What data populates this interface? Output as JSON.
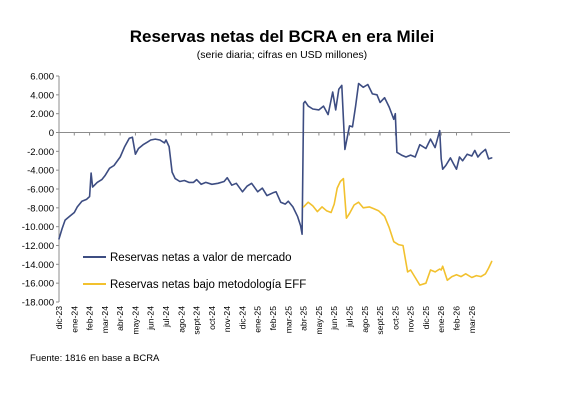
{
  "colors": {
    "market": "#3d4d82",
    "eff": "#f2c12e",
    "axis": "#8c8c8c"
  },
  "chart_data": {
    "type": "line",
    "title": "Reservas netas del BCRA en era Milei",
    "subtitle": "(serie diaria; cifras en USD millones)",
    "source": "Fuente: 1816 en base a BCRA",
    "ylim": [
      -18000,
      6000
    ],
    "yticks": [
      6000,
      4000,
      2000,
      0,
      -2000,
      -4000,
      -6000,
      -8000,
      -10000,
      -12000,
      -14000,
      -16000,
      -18000
    ],
    "ytick_labels": [
      "6.000",
      "4.000",
      "2.000",
      "0",
      "-2.000",
      "-4.000",
      "-6.000",
      "-8.000",
      "-10.000",
      "-12.000",
      "-14.000",
      "-16.000",
      "-18.000"
    ],
    "xlim": [
      0,
      29.5
    ],
    "xticks": [
      "dic-23",
      "ene-24",
      "feb-24",
      "mar-24",
      "abr-24",
      "may-24",
      "jun-24",
      "jul-24",
      "ago-24",
      "sept-24",
      "oct-24",
      "nov-24",
      "dic-24",
      "ene-25",
      "feb-25",
      "mar-25",
      "abr-25",
      "may-25",
      "jun-25",
      "jul-25",
      "ago-25",
      "sept-25",
      "oct-25",
      "nov-25",
      "dic-25",
      "ene-26",
      "feb-26",
      "mar-26"
    ],
    "grid": false,
    "legend_position": "lower-left",
    "series": [
      {
        "name": "Reservas netas a valor de mercado",
        "color_key": "market",
        "x": [
          0.0,
          0.2,
          0.4,
          0.7,
          1.0,
          1.2,
          1.5,
          1.8,
          2.0,
          2.1,
          2.2,
          2.5,
          2.8,
          3.0,
          3.3,
          3.6,
          4.0,
          4.3,
          4.6,
          4.8,
          5.0,
          5.2,
          5.5,
          5.8,
          6.0,
          6.3,
          6.6,
          6.9,
          7.0,
          7.2,
          7.4,
          7.6,
          7.9,
          8.2,
          8.5,
          8.8,
          9.0,
          9.3,
          9.6,
          10.0,
          10.4,
          10.8,
          11.0,
          11.3,
          11.6,
          12.0,
          12.3,
          12.6,
          13.0,
          13.3,
          13.6,
          14.0,
          14.2,
          14.5,
          14.8,
          15.0,
          15.3,
          15.6,
          15.8,
          15.9,
          16.0,
          16.1,
          16.3,
          16.6,
          17.0,
          17.3,
          17.6,
          17.9,
          18.1,
          18.3,
          18.5,
          18.7,
          19.0,
          19.2,
          19.4,
          19.6,
          19.9,
          20.2,
          20.5,
          20.8,
          21.0,
          21.3,
          21.6,
          21.9,
          22.0,
          22.1,
          22.4,
          22.7,
          23.0,
          23.3,
          23.6,
          24.0,
          24.3,
          24.6,
          24.9,
          25.0,
          25.1,
          25.3,
          25.6,
          25.8,
          26.0,
          26.2,
          26.4,
          26.7,
          27.0,
          27.2,
          27.4,
          27.6,
          27.9,
          28.1,
          28.3
        ],
        "y": [
          -11300,
          -10200,
          -9300,
          -8900,
          -8500,
          -7900,
          -7300,
          -7100,
          -6800,
          -4300,
          -5800,
          -5300,
          -5000,
          -4600,
          -3800,
          -3500,
          -2600,
          -1500,
          -600,
          -500,
          -2300,
          -1700,
          -1300,
          -1000,
          -800,
          -700,
          -800,
          -1100,
          -800,
          -1500,
          -4200,
          -4900,
          -5200,
          -5100,
          -5300,
          -5300,
          -5000,
          -5500,
          -5300,
          -5500,
          -5400,
          -5200,
          -4800,
          -5600,
          -5400,
          -6300,
          -5700,
          -5400,
          -6300,
          -5900,
          -6700,
          -6400,
          -6300,
          -7400,
          -7600,
          -7300,
          -7900,
          -8900,
          -9900,
          -10800,
          3100,
          3300,
          2800,
          2500,
          2400,
          2800,
          1900,
          4300,
          2400,
          4600,
          5000,
          -1800,
          700,
          600,
          2800,
          5200,
          4800,
          5100,
          4100,
          4000,
          3200,
          3700,
          2700,
          1400,
          2000,
          -2100,
          -2400,
          -2600,
          -2400,
          -2600,
          -1300,
          -1700,
          -700,
          -1600,
          200,
          -2800,
          -3900,
          -3500,
          -2700,
          -3300,
          -3900,
          -2600,
          -3000,
          -2300,
          -2500,
          -1900,
          -2600,
          -2200,
          -1800,
          -2800,
          -2700
        ]
      },
      {
        "name": "Reservas netas bajo metodología EFF",
        "color_key": "eff",
        "x": [
          16.0,
          16.3,
          16.6,
          16.9,
          17.2,
          17.5,
          17.8,
          18.0,
          18.2,
          18.4,
          18.6,
          18.8,
          19.0,
          19.3,
          19.6,
          19.9,
          20.3,
          20.6,
          20.9,
          21.3,
          21.6,
          21.9,
          22.2,
          22.5,
          22.8,
          23.0,
          23.3,
          23.6,
          24.0,
          24.3,
          24.6,
          24.9,
          25.0,
          25.1,
          25.4,
          25.7,
          26.0,
          26.3,
          26.6,
          27.0,
          27.3,
          27.6,
          27.9,
          28.1,
          28.3
        ],
        "y": [
          -7900,
          -7400,
          -7800,
          -8400,
          -7900,
          -8300,
          -8500,
          -7600,
          -5900,
          -5200,
          -4900,
          -9100,
          -8600,
          -7700,
          -7400,
          -8000,
          -7900,
          -8100,
          -8300,
          -8900,
          -10100,
          -11600,
          -11900,
          -12000,
          -14800,
          -14600,
          -15400,
          -16200,
          -16000,
          -14600,
          -14800,
          -14500,
          -14600,
          -14200,
          -15700,
          -15300,
          -15100,
          -15300,
          -15000,
          -15400,
          -15200,
          -15300,
          -15000,
          -14400,
          -13700
        ]
      }
    ]
  }
}
